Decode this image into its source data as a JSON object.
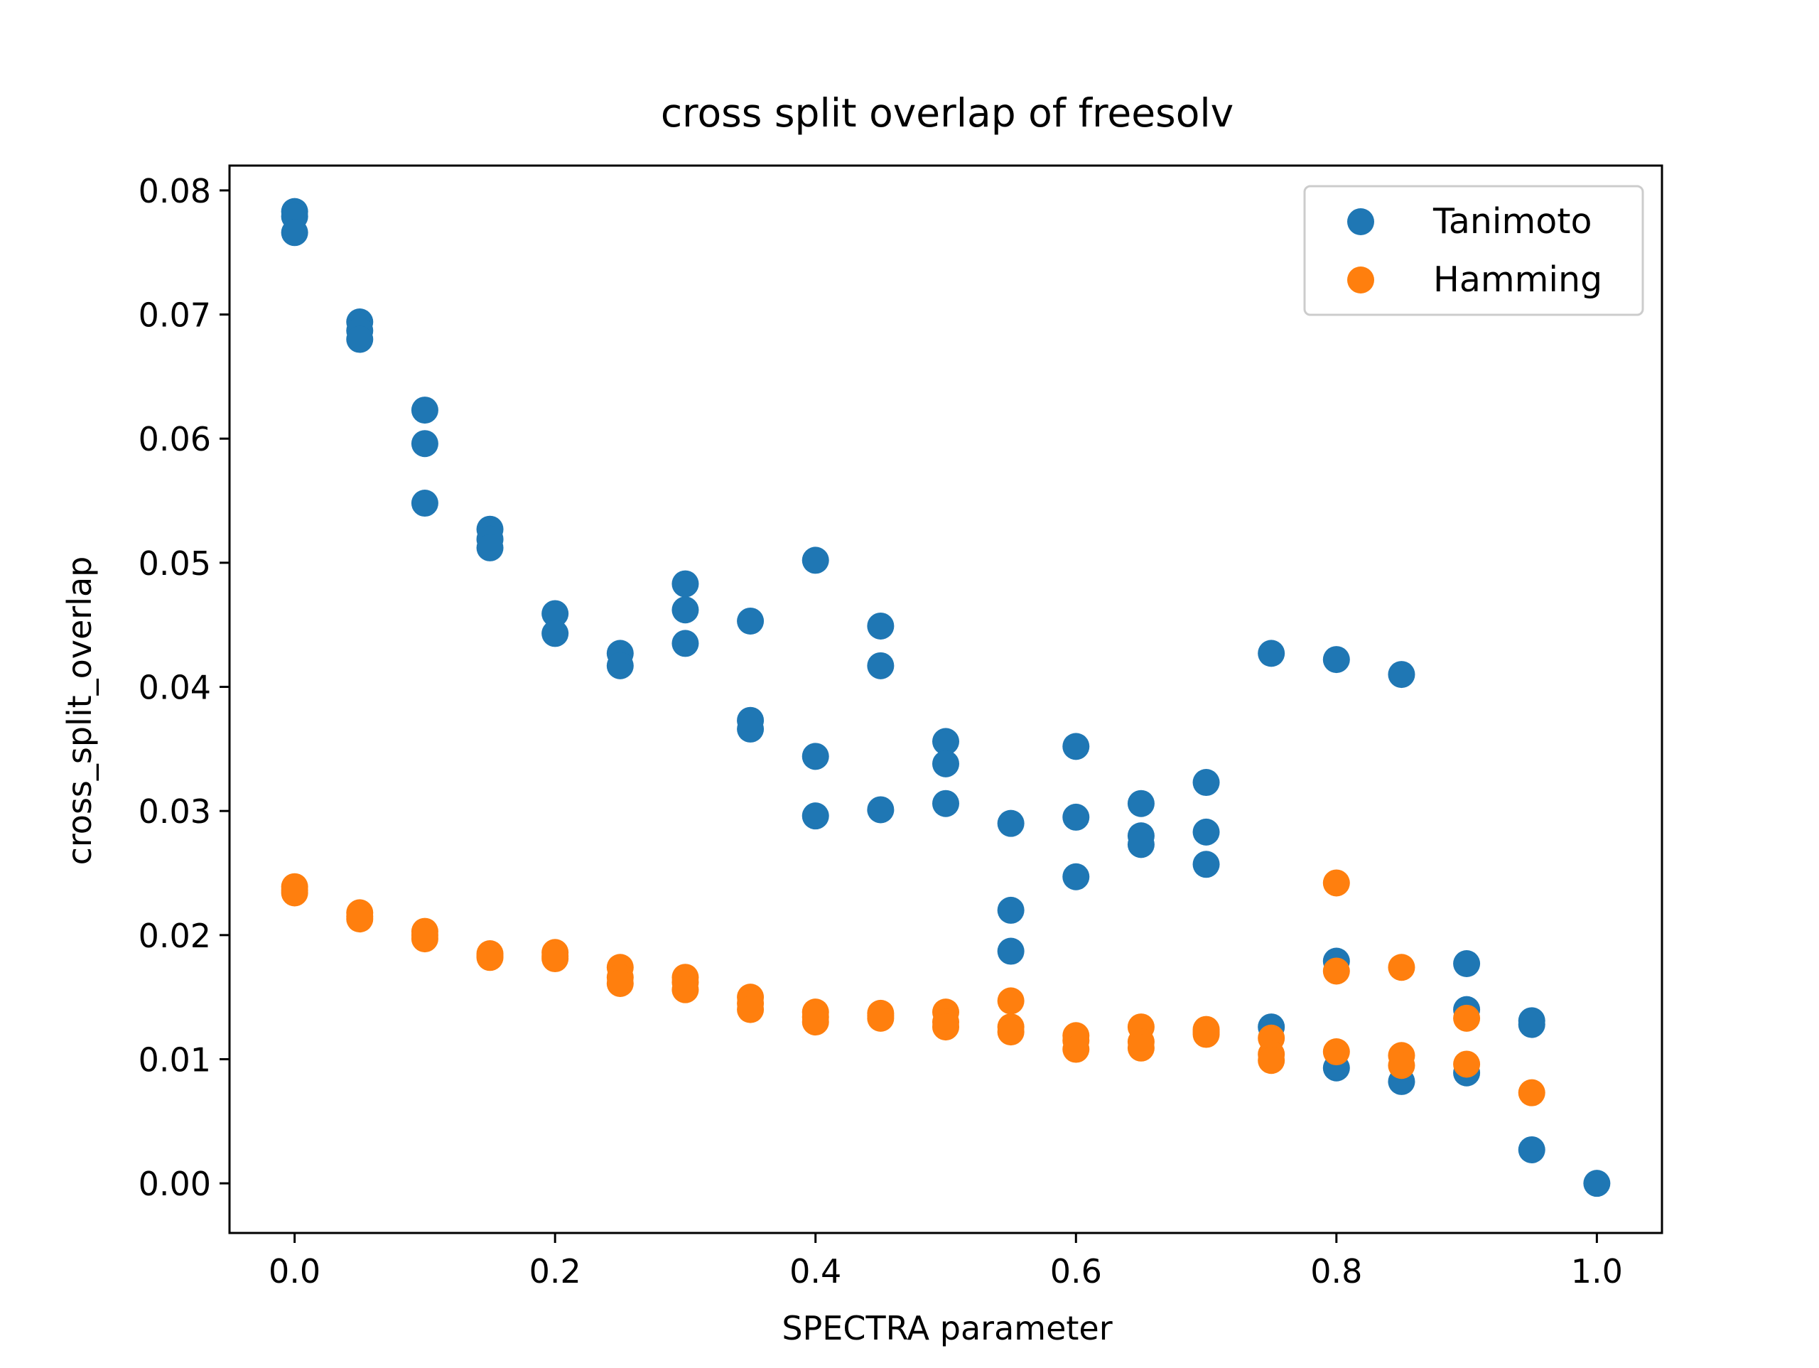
{
  "chart_data": {
    "type": "scatter",
    "title": "cross split overlap of freesolv",
    "xlabel": "SPECTRA parameter",
    "ylabel": "cross_split_overlap",
    "xlim": [
      -0.05,
      1.05
    ],
    "ylim": [
      -0.004,
      0.082
    ],
    "x_ticks": [
      0.0,
      0.2,
      0.4,
      0.6,
      0.8,
      1.0
    ],
    "x_tick_labels": [
      "0.0",
      "0.2",
      "0.4",
      "0.6",
      "0.8",
      "1.0"
    ],
    "y_ticks": [
      0.0,
      0.01,
      0.02,
      0.03,
      0.04,
      0.05,
      0.06,
      0.07,
      0.08
    ],
    "y_tick_labels": [
      "0.00",
      "0.01",
      "0.02",
      "0.03",
      "0.04",
      "0.05",
      "0.06",
      "0.07",
      "0.08"
    ],
    "grid": false,
    "legend_position": "top-right",
    "series": [
      {
        "name": "Tanimoto",
        "color": "#1f77b4",
        "points": [
          [
            0.0,
            0.0783
          ],
          [
            0.0,
            0.0779
          ],
          [
            0.0,
            0.0766
          ],
          [
            0.05,
            0.0694
          ],
          [
            0.05,
            0.0687
          ],
          [
            0.05,
            0.068
          ],
          [
            0.1,
            0.0623
          ],
          [
            0.1,
            0.0596
          ],
          [
            0.1,
            0.0548
          ],
          [
            0.15,
            0.0527
          ],
          [
            0.15,
            0.0519
          ],
          [
            0.15,
            0.0512
          ],
          [
            0.2,
            0.0459
          ],
          [
            0.2,
            0.0443
          ],
          [
            0.25,
            0.0427
          ],
          [
            0.25,
            0.0417
          ],
          [
            0.3,
            0.0483
          ],
          [
            0.3,
            0.0462
          ],
          [
            0.3,
            0.0435
          ],
          [
            0.35,
            0.0453
          ],
          [
            0.35,
            0.0373
          ],
          [
            0.35,
            0.0366
          ],
          [
            0.4,
            0.0502
          ],
          [
            0.4,
            0.0344
          ],
          [
            0.4,
            0.0296
          ],
          [
            0.45,
            0.0449
          ],
          [
            0.45,
            0.0417
          ],
          [
            0.45,
            0.0301
          ],
          [
            0.5,
            0.0356
          ],
          [
            0.5,
            0.0338
          ],
          [
            0.5,
            0.0306
          ],
          [
            0.55,
            0.029
          ],
          [
            0.55,
            0.022
          ],
          [
            0.55,
            0.0187
          ],
          [
            0.6,
            0.0352
          ],
          [
            0.6,
            0.0295
          ],
          [
            0.6,
            0.0247
          ],
          [
            0.65,
            0.0306
          ],
          [
            0.65,
            0.028
          ],
          [
            0.65,
            0.0273
          ],
          [
            0.7,
            0.0323
          ],
          [
            0.7,
            0.0283
          ],
          [
            0.7,
            0.0257
          ],
          [
            0.75,
            0.0427
          ],
          [
            0.75,
            0.0126
          ],
          [
            0.8,
            0.0422
          ],
          [
            0.8,
            0.0179
          ],
          [
            0.8,
            0.0093
          ],
          [
            0.85,
            0.041
          ],
          [
            0.85,
            0.0082
          ],
          [
            0.9,
            0.0177
          ],
          [
            0.9,
            0.014
          ],
          [
            0.9,
            0.0089
          ],
          [
            0.95,
            0.0131
          ],
          [
            0.95,
            0.0128
          ],
          [
            0.95,
            0.0027
          ],
          [
            1.0,
            0.0
          ]
        ]
      },
      {
        "name": "Hamming",
        "color": "#ff7f0e",
        "points": [
          [
            0.0,
            0.0239
          ],
          [
            0.0,
            0.0236
          ],
          [
            0.0,
            0.0234
          ],
          [
            0.05,
            0.0218
          ],
          [
            0.05,
            0.0215
          ],
          [
            0.05,
            0.0213
          ],
          [
            0.1,
            0.0203
          ],
          [
            0.1,
            0.02
          ],
          [
            0.1,
            0.0197
          ],
          [
            0.15,
            0.0185
          ],
          [
            0.15,
            0.0183
          ],
          [
            0.15,
            0.0182
          ],
          [
            0.2,
            0.0186
          ],
          [
            0.2,
            0.0183
          ],
          [
            0.2,
            0.0181
          ],
          [
            0.25,
            0.0174
          ],
          [
            0.25,
            0.0166
          ],
          [
            0.25,
            0.0161
          ],
          [
            0.3,
            0.0166
          ],
          [
            0.3,
            0.0162
          ],
          [
            0.3,
            0.0156
          ],
          [
            0.35,
            0.015
          ],
          [
            0.35,
            0.0145
          ],
          [
            0.35,
            0.014
          ],
          [
            0.4,
            0.0138
          ],
          [
            0.4,
            0.0134
          ],
          [
            0.4,
            0.013
          ],
          [
            0.45,
            0.0137
          ],
          [
            0.45,
            0.0135
          ],
          [
            0.45,
            0.0133
          ],
          [
            0.5,
            0.0138
          ],
          [
            0.5,
            0.013
          ],
          [
            0.5,
            0.0126
          ],
          [
            0.55,
            0.0147
          ],
          [
            0.55,
            0.0126
          ],
          [
            0.55,
            0.0122
          ],
          [
            0.6,
            0.0119
          ],
          [
            0.6,
            0.0115
          ],
          [
            0.6,
            0.0108
          ],
          [
            0.65,
            0.0126
          ],
          [
            0.65,
            0.0114
          ],
          [
            0.65,
            0.0109
          ],
          [
            0.7,
            0.0124
          ],
          [
            0.7,
            0.0122
          ],
          [
            0.7,
            0.012
          ],
          [
            0.75,
            0.0117
          ],
          [
            0.75,
            0.0104
          ],
          [
            0.75,
            0.0099
          ],
          [
            0.8,
            0.0242
          ],
          [
            0.8,
            0.0171
          ],
          [
            0.8,
            0.0106
          ],
          [
            0.85,
            0.0174
          ],
          [
            0.85,
            0.0103
          ],
          [
            0.85,
            0.0095
          ],
          [
            0.9,
            0.0133
          ],
          [
            0.9,
            0.0096
          ],
          [
            0.95,
            0.0073
          ]
        ]
      }
    ]
  }
}
